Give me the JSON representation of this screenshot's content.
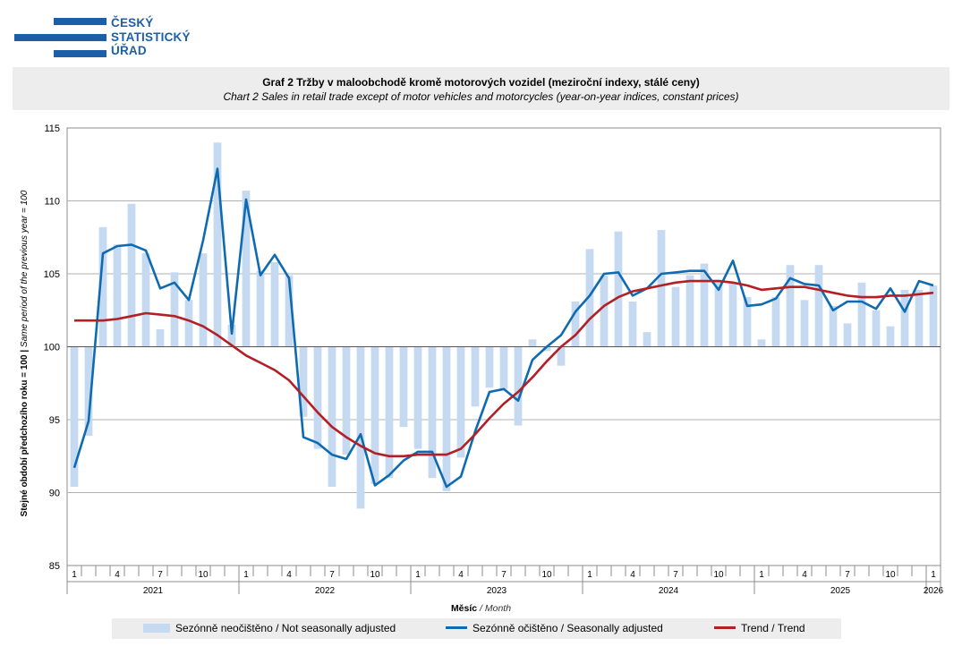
{
  "logo": {
    "lines": [
      "ČESKÝ",
      "STATISTICKÝ",
      "ÚŘAD"
    ]
  },
  "title": {
    "cz": "Graf 2 Tržby v maloobchodě kromě motorových  vozidel (meziroční indexy, stálé ceny)",
    "en": "Chart  2 Sales in retail trade except of motor vehicles and motorcycles (year-on-year  indices, constant prices)"
  },
  "axes": {
    "y_label_bold": "Stejné období předchozího roku = 100 |",
    "y_label_italic": " Same period of the previous year = 100",
    "x_label_bold": "Měsíc",
    "x_label_italic": " / Month"
  },
  "legend": {
    "bars": "Sezónně neočištěno / Not seasonally adjusted",
    "sa": "Sezónně očištěno / Seasonally adjusted",
    "trend": "Trend / Trend"
  },
  "colors": {
    "bars": "#c5d9f1",
    "sa": "#0e6bb1",
    "trend": "#b21f24",
    "logo": "#1c5fa8"
  },
  "chart_data": {
    "type": "bar+line",
    "title": "Graf 2 Tržby v maloobchodě kromě motorových vozidel (meziroční indexy, stálé ceny)",
    "ylim": [
      85,
      115
    ],
    "yticks": [
      85,
      90,
      95,
      100,
      105,
      110,
      115
    ],
    "baseline": 100,
    "x_ticks_months": [
      "1",
      "4",
      "7",
      "10"
    ],
    "years": [
      {
        "label": "2021",
        "months": 12
      },
      {
        "label": "2022",
        "months": 12
      },
      {
        "label": "2023",
        "months": 12
      },
      {
        "label": "2024",
        "months": 12
      },
      {
        "label": "2025",
        "months": 12
      },
      {
        "label": "2026",
        "months": 1
      }
    ],
    "series": [
      {
        "name": "Sezónně neočištěno / Not seasonally adjusted",
        "kind": "bar",
        "values": [
          90.4,
          93.9,
          108.2,
          107.0,
          109.8,
          106.4,
          101.2,
          105.1,
          103.2,
          106.4,
          114.0,
          101.5,
          110.7,
          105.2,
          105.8,
          104.9,
          95.2,
          93.0,
          90.4,
          92.6,
          88.9,
          90.6,
          91.0,
          94.5,
          93.0,
          91.0,
          90.1,
          92.4,
          95.9,
          97.2,
          97.1,
          94.6,
          100.5,
          99.7,
          98.7,
          103.1,
          106.7,
          104.9,
          107.9,
          103.1,
          101.0,
          108.0,
          104.1,
          104.9,
          105.7,
          104.6,
          104.4,
          103.4,
          100.5,
          103.4,
          105.6,
          103.2,
          105.6,
          102.8,
          101.6,
          104.4,
          102.5,
          101.4,
          103.9,
          103.9,
          104.2
        ]
      },
      {
        "name": "Sezónně očištěno / Seasonally adjusted",
        "kind": "line",
        "values": [
          91.7,
          94.9,
          106.4,
          106.9,
          107.0,
          106.6,
          104.0,
          104.4,
          103.2,
          107.3,
          112.2,
          100.9,
          110.1,
          104.9,
          106.3,
          104.7,
          93.8,
          93.4,
          92.6,
          92.3,
          94.0,
          90.5,
          91.2,
          92.2,
          92.8,
          92.8,
          90.4,
          91.1,
          94.2,
          96.9,
          97.1,
          96.3,
          99.1,
          100.0,
          100.8,
          102.4,
          103.5,
          105.0,
          105.1,
          103.5,
          104.0,
          105.0,
          105.1,
          105.2,
          105.2,
          103.9,
          105.9,
          102.8,
          102.9,
          103.3,
          104.7,
          104.3,
          104.2,
          102.5,
          103.1,
          103.1,
          102.6,
          104.0,
          102.4,
          104.5,
          104.2
        ]
      },
      {
        "name": "Trend / Trend",
        "kind": "line",
        "values": [
          101.8,
          101.8,
          101.8,
          101.9,
          102.1,
          102.3,
          102.2,
          102.1,
          101.8,
          101.4,
          100.8,
          100.1,
          99.4,
          98.9,
          98.4,
          97.7,
          96.6,
          95.5,
          94.5,
          93.8,
          93.2,
          92.7,
          92.5,
          92.5,
          92.6,
          92.6,
          92.6,
          93.0,
          94.0,
          95.1,
          96.1,
          96.9,
          97.9,
          99.0,
          100.0,
          100.8,
          101.9,
          102.8,
          103.4,
          103.8,
          104.0,
          104.2,
          104.4,
          104.5,
          104.5,
          104.5,
          104.4,
          104.2,
          103.9,
          104.0,
          104.1,
          104.1,
          103.9,
          103.7,
          103.5,
          103.4,
          103.4,
          103.5,
          103.5,
          103.6,
          103.7
        ]
      }
    ]
  }
}
